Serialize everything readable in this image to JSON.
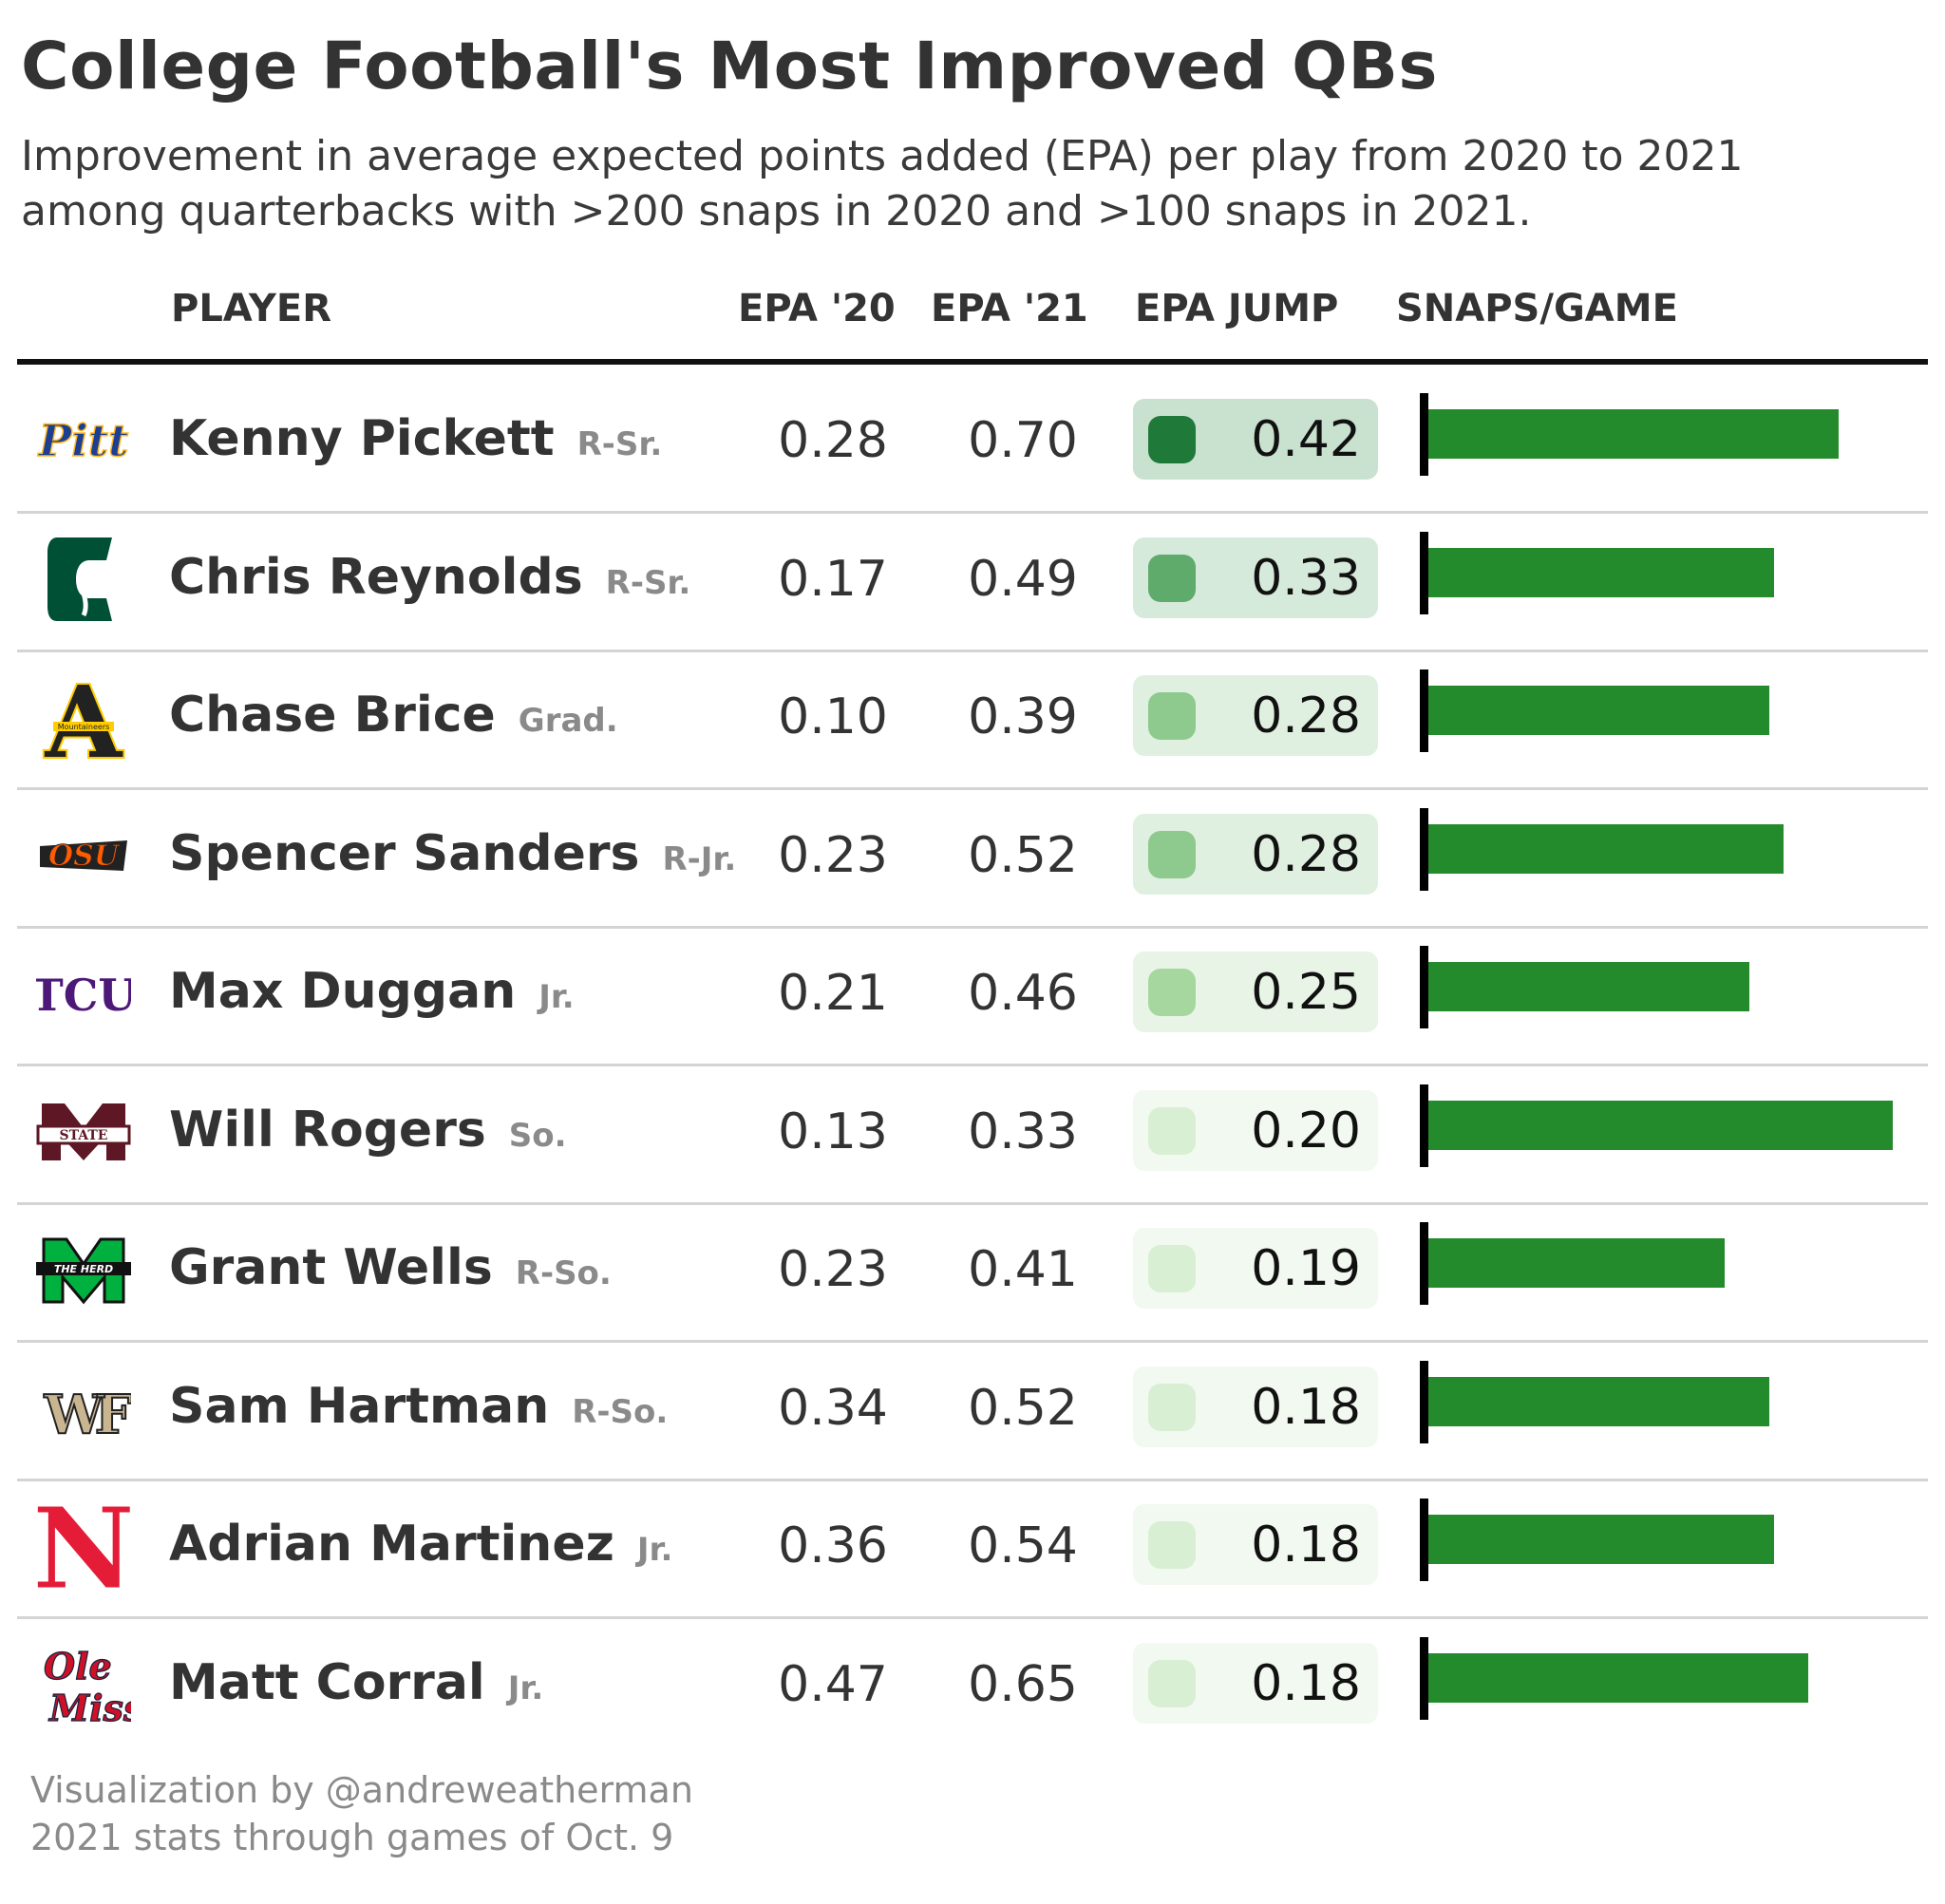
{
  "title": "College Football's Most Improved QBs",
  "subtitle": "Improvement in average expected points added (EPA) per play from 2020 to 2021 among quarterbacks with >200 snaps in 2020 and >100 snaps in 2021.",
  "headers": {
    "player": "PLAYER",
    "epa20": "EPA '20",
    "epa21": "EPA '21",
    "jump": "EPA JUMP",
    "snaps": "SNAPS/GAME"
  },
  "footer": {
    "line1": "Visualization by @andreweatherman",
    "line2": "2021 stats through games of Oct. 9"
  },
  "colors": {
    "bar": "#238b2b",
    "jump_scale": [
      "#e5f5e0",
      "#c7e9c0",
      "#a1d99b",
      "#74c476",
      "#31a354",
      "#006d2c"
    ]
  },
  "chart_data": {
    "type": "table",
    "columns": [
      "PLAYER",
      "EPA '20",
      "EPA '21",
      "EPA JUMP",
      "SNAPS/GAME"
    ],
    "rows": [
      {
        "logo": "pitt-logo",
        "logo_text": "Pitt",
        "name": "Kenny Pickett",
        "cls": "R-Sr.",
        "epa20": "0.28",
        "epa21": "0.70",
        "jump": "0.42",
        "snaps": 0.83
      },
      {
        "logo": "charlotte-logo",
        "logo_text": "",
        "name": "Chris Reynolds",
        "cls": "R-Sr.",
        "epa20": "0.17",
        "epa21": "0.49",
        "jump": "0.33",
        "snaps": 0.7
      },
      {
        "logo": "app-state-logo",
        "logo_text": "A",
        "name": "Chase Brice",
        "cls": "Grad.",
        "epa20": "0.10",
        "epa21": "0.39",
        "jump": "0.28",
        "snaps": 0.69
      },
      {
        "logo": "oklahoma-state-logo",
        "logo_text": "OSU",
        "name": "Spencer Sanders",
        "cls": "R-Jr.",
        "epa20": "0.23",
        "epa21": "0.52",
        "jump": "0.28",
        "snaps": 0.72
      },
      {
        "logo": "tcu-logo",
        "logo_text": "TCU",
        "name": "Max Duggan",
        "cls": "Jr.",
        "epa20": "0.21",
        "epa21": "0.46",
        "jump": "0.25",
        "snaps": 0.65
      },
      {
        "logo": "mississippi-state-logo",
        "logo_text": "STATE",
        "name": "Will Rogers",
        "cls": "So.",
        "epa20": "0.13",
        "epa21": "0.33",
        "jump": "0.20",
        "snaps": 0.94
      },
      {
        "logo": "marshall-logo",
        "logo_text": "THE HERD",
        "name": "Grant Wells",
        "cls": "R-So.",
        "epa20": "0.23",
        "epa21": "0.41",
        "jump": "0.19",
        "snaps": 0.6
      },
      {
        "logo": "wake-forest-logo",
        "logo_text": "WF",
        "name": "Sam Hartman",
        "cls": "R-So.",
        "epa20": "0.34",
        "epa21": "0.52",
        "jump": "0.18",
        "snaps": 0.69
      },
      {
        "logo": "nebraska-logo",
        "logo_text": "N",
        "name": "Adrian Martinez",
        "cls": "Jr.",
        "epa20": "0.36",
        "epa21": "0.54",
        "jump": "0.18",
        "snaps": 0.7
      },
      {
        "logo": "ole-miss-logo",
        "logo_text": "Ole Miss",
        "name": "Matt Corral",
        "cls": "Jr.",
        "epa20": "0.47",
        "epa21": "0.65",
        "jump": "0.18",
        "snaps": 0.77
      }
    ]
  }
}
